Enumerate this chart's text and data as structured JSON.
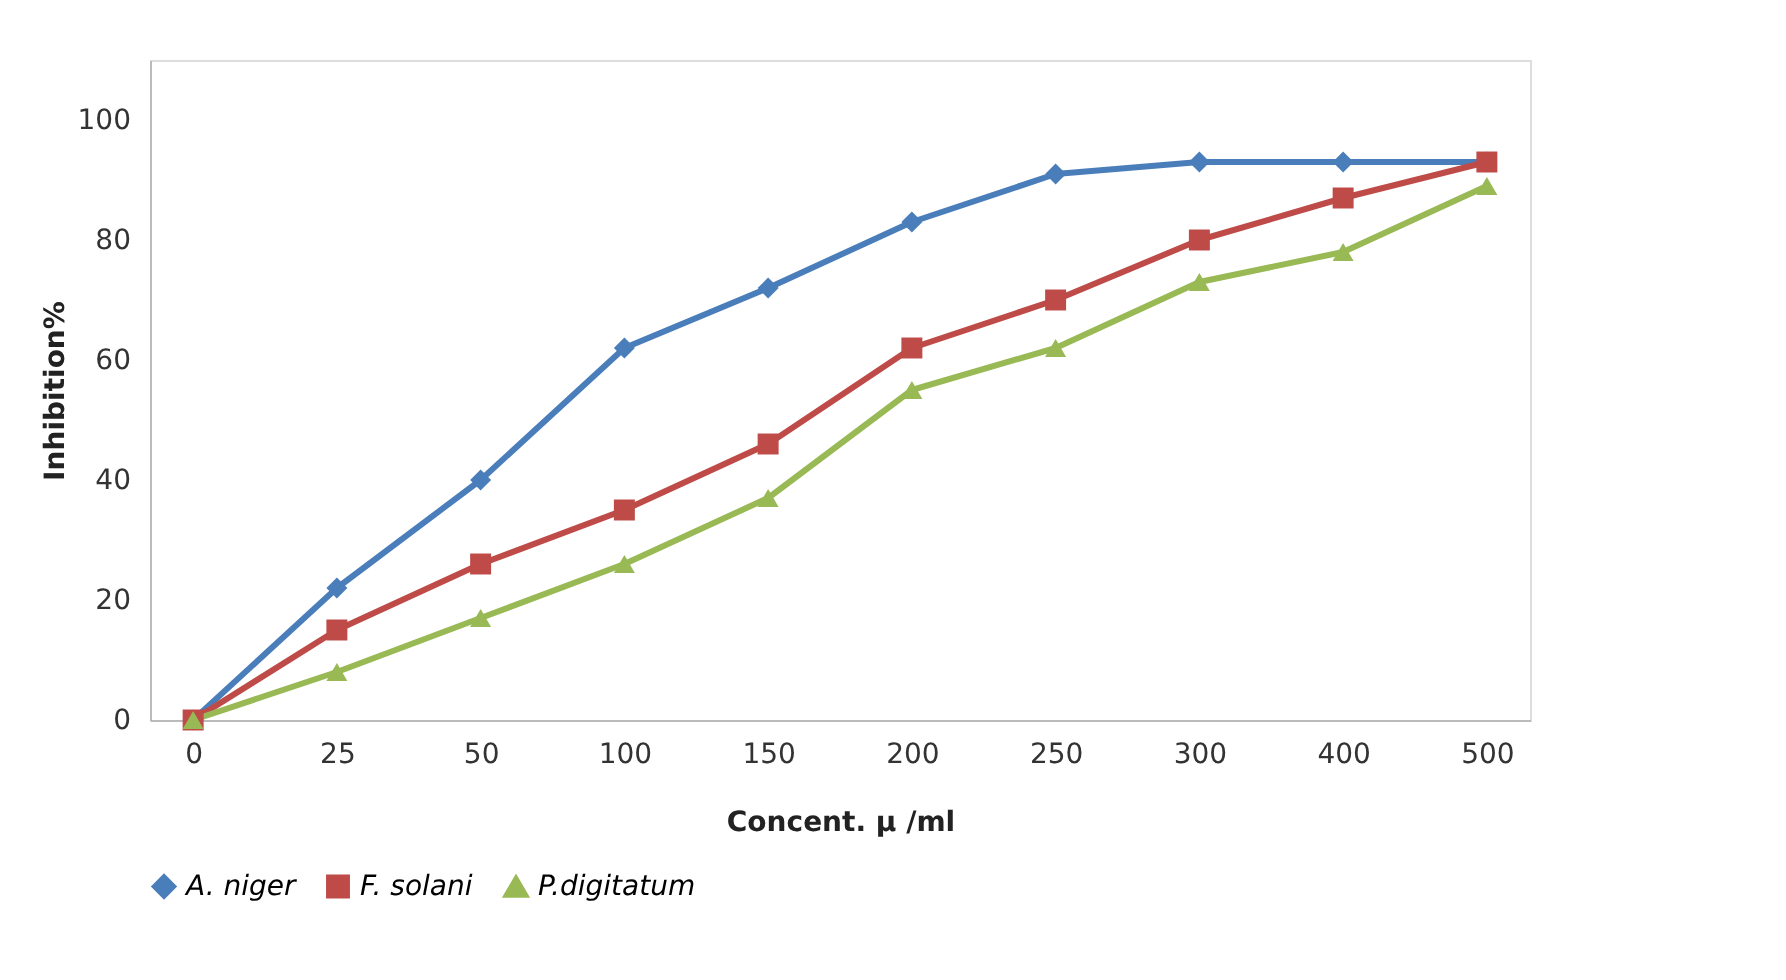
{
  "chart_data": {
    "type": "line",
    "xlabel": "Concent. µ /ml",
    "ylabel": "Inhibition%",
    "categories": [
      "0",
      "25",
      "50",
      "100",
      "150",
      "200",
      "250",
      "300",
      "400",
      "500"
    ],
    "series": [
      {
        "name": "A. niger",
        "color": "#4a7ebb",
        "marker": "diamond",
        "values": [
          0,
          22,
          40,
          62,
          72,
          83,
          91,
          93,
          93,
          93
        ]
      },
      {
        "name": "F. solani",
        "color": "#be4b48",
        "marker": "square",
        "values": [
          0,
          15,
          26,
          35,
          46,
          62,
          70,
          80,
          87,
          93
        ]
      },
      {
        "name": "P.digitatum",
        "color": "#98b954",
        "marker": "triangle",
        "values": [
          0,
          8,
          17,
          26,
          37,
          55,
          62,
          73,
          78,
          89
        ]
      }
    ],
    "ylim": [
      0,
      110
    ],
    "yticks": [
      0,
      20,
      40,
      60,
      80,
      100
    ],
    "grid": false,
    "legend": "bottom",
    "line_style": "solid"
  }
}
